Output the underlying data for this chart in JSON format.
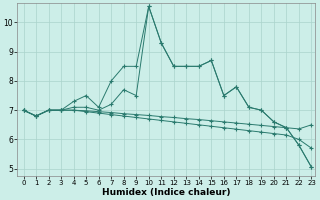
{
  "xlabel": "Humidex (Indice chaleur)",
  "bg_color": "#cceee8",
  "grid_color": "#aad4cc",
  "line_color": "#2a7a6e",
  "xlim_min": -0.5,
  "xlim_max": 23.3,
  "ylim_min": 4.75,
  "ylim_max": 10.65,
  "yticks": [
    5,
    6,
    7,
    8,
    9,
    10
  ],
  "xticks": [
    0,
    1,
    2,
    3,
    4,
    5,
    6,
    7,
    8,
    9,
    10,
    11,
    12,
    13,
    14,
    15,
    16,
    17,
    18,
    19,
    20,
    21,
    22,
    23
  ],
  "series": [
    [
      7.0,
      6.8,
      7.0,
      7.0,
      7.3,
      7.5,
      7.1,
      8.0,
      8.5,
      8.5,
      10.55,
      9.3,
      8.5,
      8.5,
      8.5,
      8.7,
      7.5,
      7.8,
      7.1,
      7.0,
      6.6,
      6.4,
      5.8,
      5.05
    ],
    [
      7.0,
      6.8,
      7.0,
      7.0,
      7.1,
      7.1,
      7.0,
      7.2,
      7.7,
      7.5,
      10.55,
      9.3,
      8.5,
      8.5,
      8.5,
      8.7,
      7.5,
      7.8,
      7.1,
      7.0,
      6.6,
      6.4,
      5.8,
      5.05
    ],
    [
      7.0,
      6.8,
      7.0,
      7.0,
      7.0,
      6.98,
      6.95,
      6.92,
      6.88,
      6.85,
      6.82,
      6.78,
      6.75,
      6.71,
      6.68,
      6.64,
      6.6,
      6.56,
      6.52,
      6.48,
      6.44,
      6.4,
      6.36,
      6.5
    ],
    [
      7.0,
      6.8,
      7.0,
      7.0,
      7.0,
      6.95,
      6.9,
      6.85,
      6.8,
      6.75,
      6.7,
      6.65,
      6.6,
      6.55,
      6.5,
      6.45,
      6.4,
      6.35,
      6.3,
      6.25,
      6.2,
      6.15,
      6.0,
      5.7
    ]
  ]
}
